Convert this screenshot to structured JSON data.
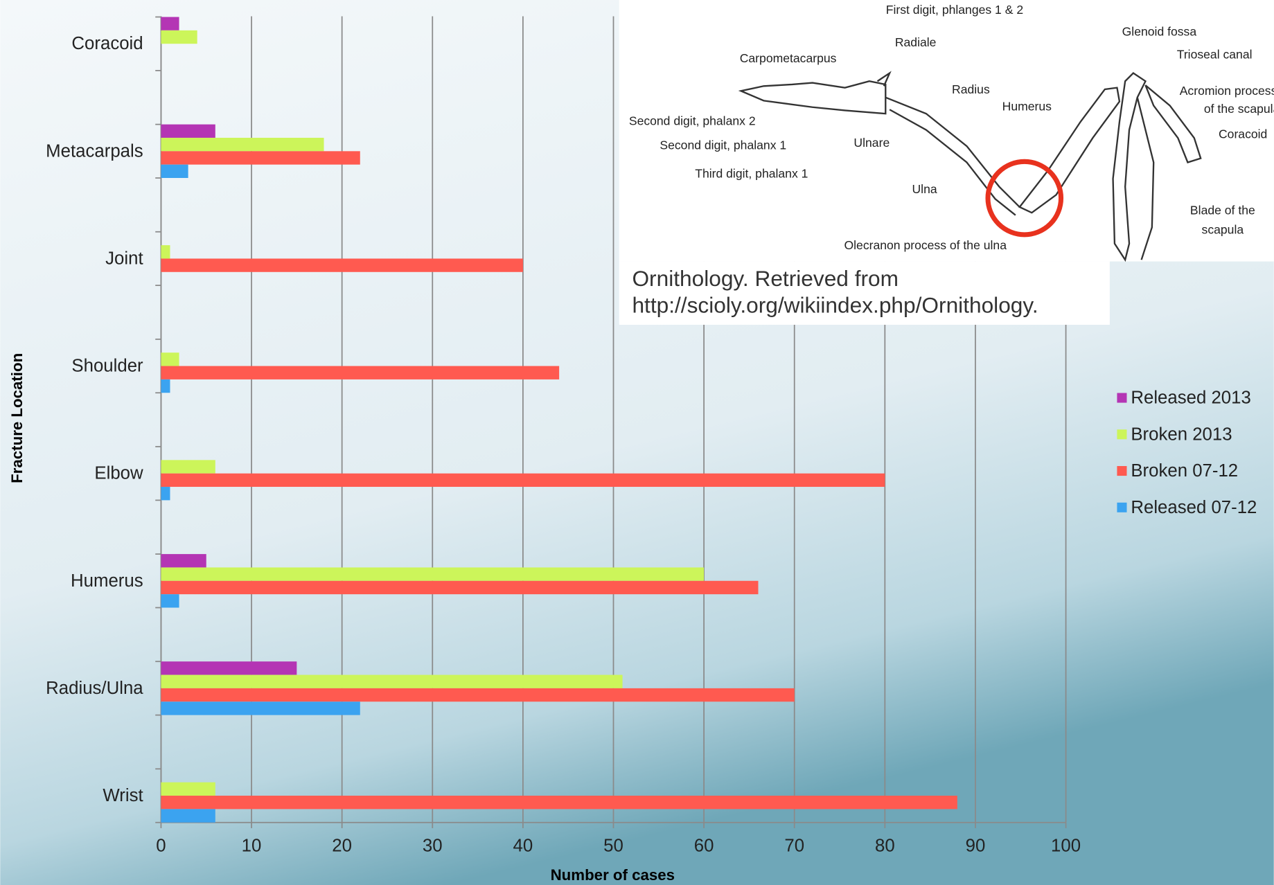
{
  "chart_data": {
    "type": "bar",
    "orientation": "horizontal",
    "x_label": "Number of cases",
    "y_label": "Fracture Location",
    "categories": [
      "Coracoid",
      "Metacarpals",
      "Joint",
      "Shoulder",
      "Elbow",
      "Humerus",
      "Radius/Ulna",
      "Wrist"
    ],
    "series": [
      {
        "name": "Released 2013",
        "color": "#b435b4",
        "values": [
          2,
          6,
          0,
          0,
          0,
          5,
          15,
          0
        ]
      },
      {
        "name": "Broken 2013",
        "color": "#ccf55a",
        "values": [
          4,
          18,
          1,
          2,
          6,
          60,
          51,
          6
        ]
      },
      {
        "name": "Broken 07-12",
        "color": "#ff5a50",
        "values": [
          0,
          22,
          40,
          44,
          80,
          66,
          70,
          88
        ]
      },
      {
        "name": "Released 07-12",
        "color": "#3ba3f0",
        "values": [
          0,
          3,
          0,
          1,
          1,
          2,
          22,
          6
        ]
      }
    ],
    "xlim": [
      0,
      100
    ],
    "xticks": [
      0,
      10,
      20,
      30,
      40,
      50,
      60,
      70,
      80,
      90,
      100
    ],
    "grid": true,
    "legend": "right"
  },
  "inset": {
    "labels": [
      "First digit, phlanges 1 & 2",
      "Radiale",
      "Carpometacarpus",
      "Glenoid fossa",
      "Trioseal canal",
      "Radius",
      "Humerus",
      "Acromion process",
      "of the scapula",
      "Second digit, phalanx 2",
      "Coracoid",
      "Second digit, phalanx 1",
      "Ulnare",
      "Third digit, phalanx 1",
      "Ulna",
      "Blade of the",
      "scapula",
      "Olecranon process of the ulna"
    ],
    "citation": [
      "Ornithology. Retrieved from",
      "http://scioly.org/wikiindex.php/Ornithology."
    ]
  }
}
